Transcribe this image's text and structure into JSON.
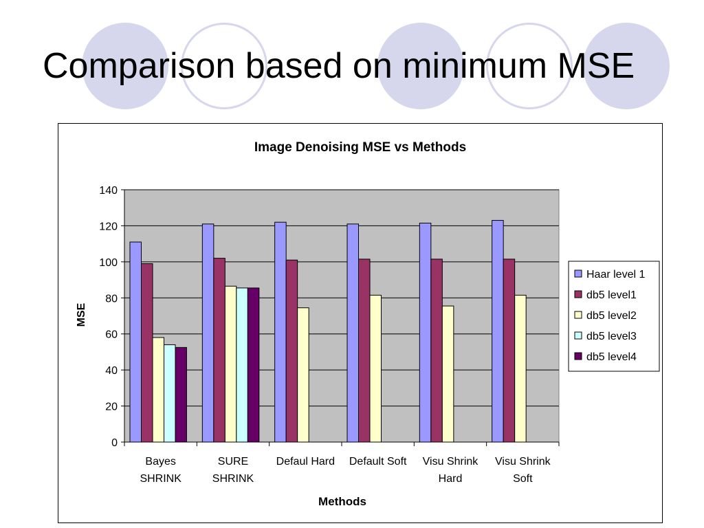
{
  "slide": {
    "title": "Comparison based on minimum MSE"
  },
  "colors": {
    "decor_circle": "#d6d6ec",
    "plot_area": "#c0c0c0",
    "series": [
      "#9999ff",
      "#993366",
      "#ffffcc",
      "#ccffff",
      "#660066"
    ]
  },
  "chart_data": {
    "type": "bar",
    "title": "Image Denoising MSE vs Methods",
    "xlabel": "Methods",
    "ylabel": "MSE",
    "ylim": [
      0,
      140
    ],
    "yticks": [
      0,
      20,
      40,
      60,
      80,
      100,
      120,
      140
    ],
    "grid": true,
    "legend_position": "right",
    "categories": [
      [
        "Bayes",
        "SHRINK"
      ],
      [
        "SURE",
        "SHRINK"
      ],
      [
        "Defaul Hard"
      ],
      [
        "Default Soft"
      ],
      [
        "Visu Shrink",
        "Hard"
      ],
      [
        "Visu Shrink",
        "Soft"
      ]
    ],
    "series": [
      {
        "name": "Haar level 1",
        "color": "#9999ff",
        "values": [
          111,
          121,
          122,
          121,
          121.5,
          123
        ]
      },
      {
        "name": "db5 level1",
        "color": "#993366",
        "values": [
          99,
          102,
          101,
          101.5,
          101.5,
          101.5
        ]
      },
      {
        "name": "db5 level2",
        "color": "#ffffcc",
        "values": [
          58,
          86.5,
          74.5,
          81.5,
          75.5,
          81.5
        ]
      },
      {
        "name": "db5 level3",
        "color": "#ccffff",
        "values": [
          54,
          85.5,
          null,
          null,
          null,
          null
        ]
      },
      {
        "name": "db5 level4",
        "color": "#660066",
        "values": [
          52.5,
          85.5,
          null,
          null,
          null,
          null
        ]
      }
    ]
  }
}
